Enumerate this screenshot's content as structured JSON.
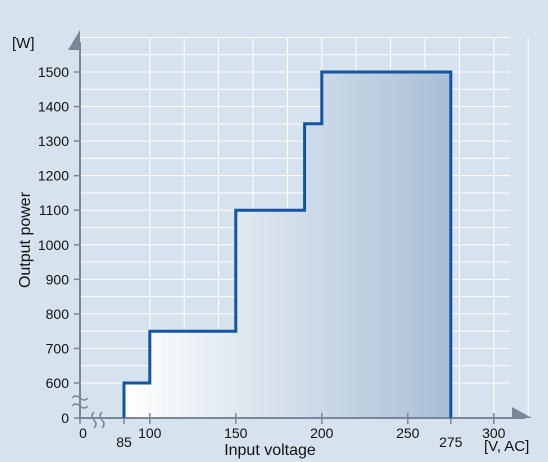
{
  "chart_data": {
    "type": "line",
    "xlabel": "Input voltage",
    "ylabel": "Output power",
    "x_unit": "[V, AC]",
    "y_unit": "[W]",
    "xlim": [
      0,
      320
    ],
    "ylim": [
      0,
      1600
    ],
    "grid": true,
    "axis_break": true,
    "x_ticks": [
      "0",
      "85",
      "100",
      "150",
      "200",
      "250",
      "275",
      "300"
    ],
    "y_ticks": [
      "0",
      "600",
      "700",
      "800",
      "900",
      "1000",
      "1100",
      "1200",
      "1300",
      "1400",
      "1500"
    ],
    "series": [
      {
        "x": [
          85,
          85,
          100,
          100,
          150,
          150,
          190,
          190,
          200,
          200,
          275,
          275
        ],
        "y": [
          0,
          600,
          600,
          750,
          750,
          1100,
          1100,
          1350,
          1350,
          1500,
          1500,
          0
        ]
      }
    ],
    "colors": {
      "line": "#1454a0",
      "fill_start": "#ffffff",
      "fill_end": "#a9bfd6",
      "grid": "#ffffff",
      "axis": "#7a8796"
    }
  }
}
